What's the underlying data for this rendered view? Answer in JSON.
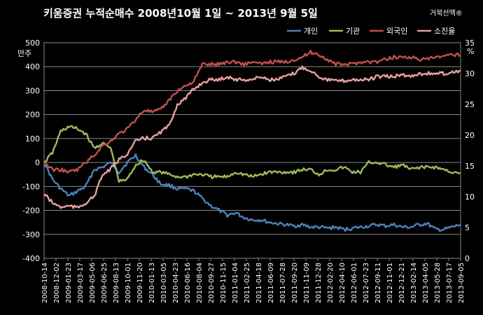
{
  "chart_data": {
    "type": "line",
    "title": "키움증권  누적순매수   2008년10월 1일 ~ 2013년 9월 5일",
    "brand": "거북선맥®",
    "left_axis_unit": "만주",
    "right_axis_unit": "%",
    "ylim_left": [
      -400,
      500
    ],
    "yticks_left": [
      -400,
      -300,
      -200,
      -100,
      0,
      100,
      200,
      300,
      400,
      500
    ],
    "ylim_right": [
      0,
      35
    ],
    "yticks_right": [
      0,
      5,
      10,
      15,
      20,
      25,
      30,
      35
    ],
    "legend_position": "top-right",
    "grid": true,
    "x_tick_labels": [
      "2008-10-14",
      "2008-12-02",
      "2009-01-23",
      "2009-03-17",
      "2009-05-06",
      "2009-06-25",
      "2009-08-13",
      "2009-10-01",
      "2009-11-20",
      "2010-01-13",
      "2010-03-05",
      "2010-04-23",
      "2010-06-16",
      "2010-08-04",
      "2010-09-27",
      "2010-11-15",
      "2011-01-04",
      "2011-02-25",
      "2011-04-18",
      "2011-06-09",
      "2011-07-28",
      "2011-09-20",
      "2011-11-09",
      "2011-12-28",
      "2012-02-20",
      "2012-04-10",
      "2012-06-01",
      "2012-07-23",
      "2012-09-11",
      "2012-11-01",
      "2012-12-21",
      "2013-02-14",
      "2013-04-05",
      "2013-05-28",
      "2013-07-17",
      "2013-09-05"
    ],
    "series": [
      {
        "name": "개인",
        "axis": "left",
        "color": "#4f81bd",
        "values": [
          0,
          -70,
          -110,
          -140,
          -120,
          -100,
          -30,
          -20,
          0,
          -40,
          0,
          30,
          -20,
          -50,
          -90,
          -95,
          -110,
          -110,
          -120,
          -150,
          -180,
          -200,
          -220,
          -210,
          -230,
          -240,
          -240,
          -250,
          -255,
          -260,
          -265,
          -260,
          -270,
          -270,
          -275,
          -270,
          -280,
          -275,
          -270,
          -265,
          -260,
          -265,
          -260,
          -270,
          -270,
          -260,
          -255,
          -280,
          -280,
          -270,
          -260
        ]
      },
      {
        "name": "기관",
        "axis": "left",
        "color": "#9bbb59",
        "values": [
          0,
          40,
          130,
          150,
          140,
          120,
          60,
          80,
          60,
          -80,
          -70,
          -10,
          10,
          -40,
          -40,
          -50,
          -60,
          -60,
          -50,
          -50,
          -60,
          -60,
          -60,
          -40,
          -50,
          -60,
          -50,
          -40,
          -40,
          -40,
          -40,
          -30,
          -30,
          -50,
          -30,
          -30,
          -20,
          -40,
          -40,
          0,
          0,
          -10,
          -20,
          -10,
          -30,
          -20,
          -20,
          -20,
          -30,
          -40,
          -50
        ]
      },
      {
        "name": "외국인",
        "axis": "left",
        "color": "#c0504d",
        "values": [
          0,
          -30,
          -30,
          -40,
          -30,
          0,
          30,
          70,
          90,
          120,
          140,
          180,
          220,
          210,
          220,
          260,
          300,
          320,
          340,
          410,
          410,
          410,
          420,
          420,
          410,
          420,
          410,
          420,
          420,
          420,
          430,
          440,
          460,
          450,
          430,
          410,
          410,
          410,
          420,
          420,
          420,
          430,
          440,
          440,
          440,
          430,
          430,
          440,
          440,
          450,
          450
        ]
      },
      {
        "name": "소진율",
        "axis": "right",
        "color": "#e6a0a0",
        "values": [
          10.5,
          9.0,
          8.3,
          8.5,
          8.2,
          9.0,
          10.0,
          13.5,
          14.5,
          16.0,
          17.0,
          19.0,
          19.5,
          19.5,
          20.5,
          21.5,
          25.0,
          26.0,
          27.5,
          28.5,
          29.0,
          29.0,
          29.5,
          29.0,
          29.0,
          29.0,
          29.5,
          29.0,
          29.0,
          29.5,
          30.0,
          31.0,
          30.5,
          29.5,
          29.0,
          28.8,
          28.8,
          29.0,
          29.0,
          29.0,
          29.5,
          29.5,
          29.5,
          29.8,
          29.5,
          30.0,
          30.0,
          30.0,
          30.0,
          30.2,
          30.5
        ]
      }
    ]
  }
}
